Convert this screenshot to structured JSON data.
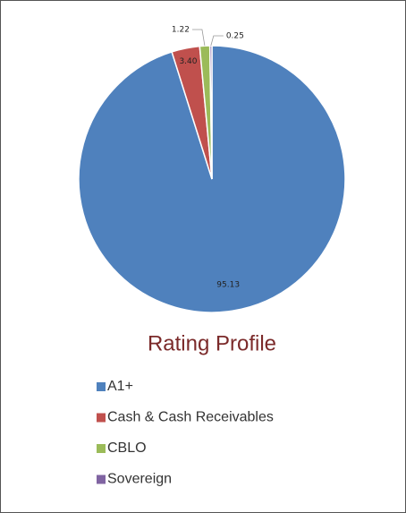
{
  "chart_data": {
    "type": "pie",
    "title": "Rating Profile",
    "categories": [
      "A1+",
      "Cash & Cash Receivables",
      "CBLO",
      "Sovereign"
    ],
    "values": [
      95.13,
      3.4,
      1.22,
      0.25
    ],
    "value_labels": [
      "95.13",
      "3.40",
      "1.22",
      "0.25"
    ],
    "colors": [
      "#4f81bd",
      "#c0504d",
      "#9bbb59",
      "#8064a2"
    ],
    "legend": "bottom"
  }
}
